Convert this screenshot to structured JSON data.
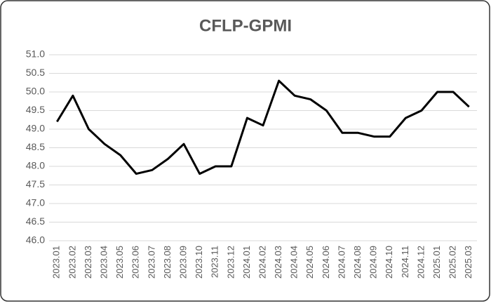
{
  "chart_data": {
    "type": "line",
    "title": "CFLP-GPMI",
    "categories": [
      "2023.01",
      "2023.02",
      "2023.03",
      "2023.04",
      "2023.05",
      "2023.06",
      "2023.07",
      "2023.08",
      "2023.09",
      "2023.10",
      "2023.11",
      "2023.12",
      "2024.01",
      "2024.02",
      "2024.03",
      "2024.04",
      "2024.05",
      "2024.06",
      "2024.07",
      "2024.08",
      "2024.09",
      "2024.10",
      "2024.11",
      "2024.12",
      "2025.01",
      "2025.02",
      "2025.03"
    ],
    "values": [
      49.2,
      49.9,
      49.0,
      48.6,
      48.3,
      47.8,
      47.9,
      48.2,
      48.6,
      47.8,
      48.0,
      48.0,
      49.3,
      49.1,
      50.3,
      49.9,
      49.8,
      49.5,
      48.9,
      48.9,
      48.8,
      48.8,
      49.3,
      49.5,
      50.0,
      50.0,
      49.6
    ],
    "color": "#000000",
    "ylim": [
      46,
      51
    ],
    "yticks": [
      {
        "value": 46,
        "label": "46.0"
      },
      46.5,
      {
        "value": 47,
        "label": "47.0"
      },
      47.5,
      {
        "value": 48,
        "label": "48.0"
      },
      48.5,
      {
        "value": 49,
        "label": "49.0"
      },
      49.5,
      {
        "value": 50,
        "label": "50.0"
      },
      50.5,
      {
        "value": 51,
        "label": "51.0"
      }
    ],
    "grid": true
  }
}
